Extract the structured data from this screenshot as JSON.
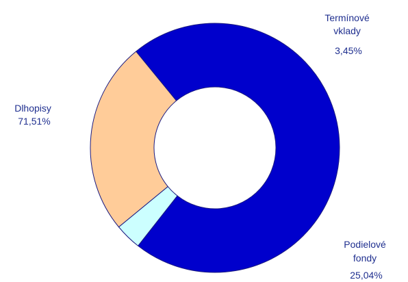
{
  "chart_data": {
    "type": "pie",
    "donut": true,
    "slices": [
      {
        "label_lines": [
          "Dlhopisy"
        ],
        "value_label": "71,51%",
        "value": 71.51,
        "color": "#0000cc"
      },
      {
        "label_lines": [
          "Termínové",
          "vklady"
        ],
        "value_label": "3,45%",
        "value": 3.45,
        "color": "#ccffff"
      },
      {
        "label_lines": [
          "Podielové",
          "fondy"
        ],
        "value_label": "25,04%",
        "value": 25.04,
        "color": "#ffcc99"
      }
    ],
    "title": "",
    "legend": "none"
  }
}
